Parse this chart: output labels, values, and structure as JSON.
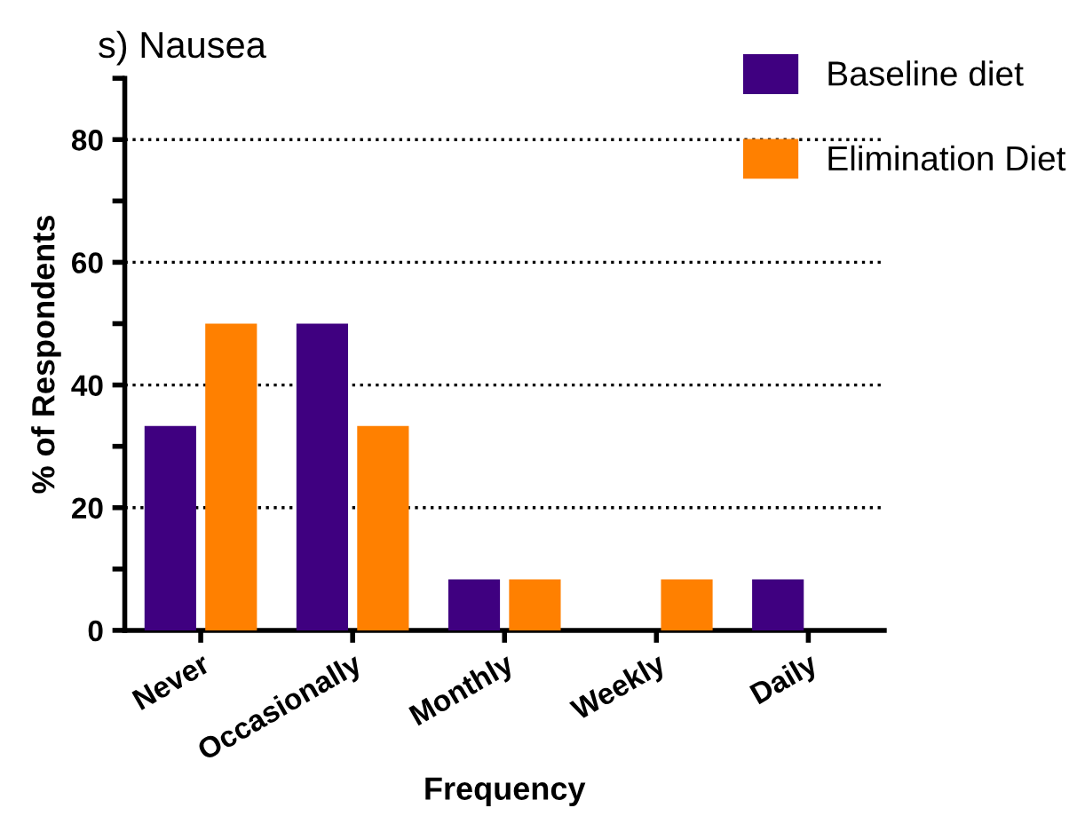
{
  "chart_data": {
    "type": "bar",
    "title": "s) Nausea",
    "xlabel": "Frequency",
    "ylabel": "% of Respondents",
    "categories": [
      "Never",
      "Occasionally",
      "Monthly",
      "Weekly",
      "Daily"
    ],
    "series": [
      {
        "name": "Baseline diet",
        "color": "#3f0080",
        "values": [
          33.3,
          50,
          8.3,
          0,
          8.3
        ]
      },
      {
        "name": "Elimination Diet",
        "color": "#ff8000",
        "values": [
          50,
          33.3,
          8.3,
          8.3,
          0
        ]
      }
    ],
    "ylim": [
      0,
      90
    ],
    "yticks": [
      0,
      {
        "value": 10,
        "label": null
      },
      20,
      {
        "value": 30,
        "label": null
      },
      40,
      {
        "value": 50,
        "label": null
      },
      60,
      {
        "value": 70,
        "label": null
      },
      80,
      {
        "value": 90,
        "label": null
      }
    ],
    "grid": "y",
    "line_style": "dotted",
    "legend": "top right"
  }
}
